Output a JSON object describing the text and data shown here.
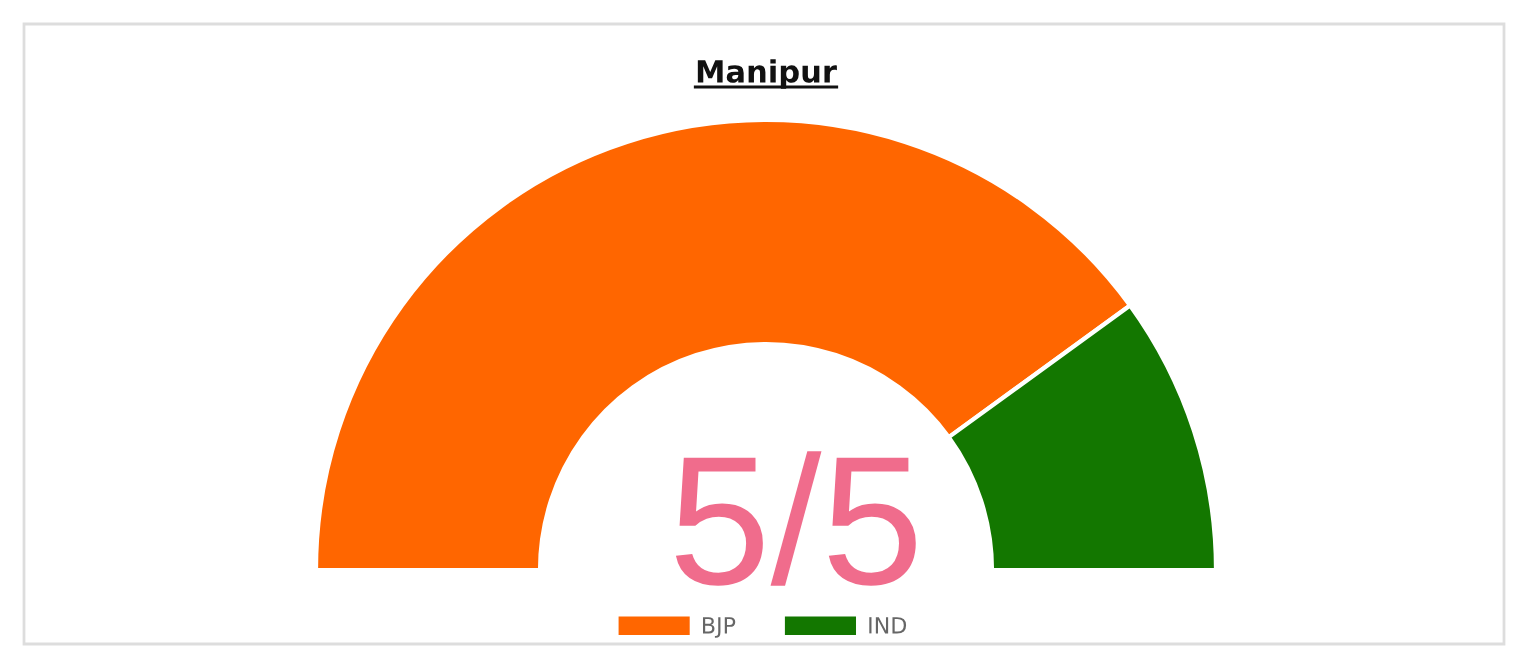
{
  "chart_data": {
    "type": "donut",
    "title": "Manipur",
    "categories": [
      "BJP",
      "IND"
    ],
    "values": [
      80,
      20
    ],
    "colors": [
      "#ff6600",
      "#137700"
    ],
    "annotations": [
      "5/5"
    ],
    "legend": "bottom"
  }
}
